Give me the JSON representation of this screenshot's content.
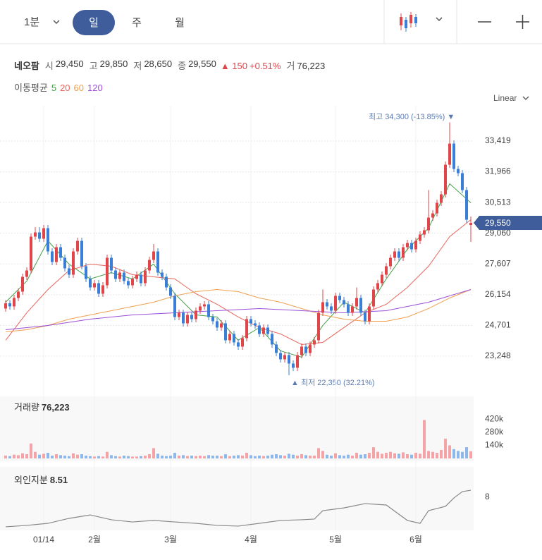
{
  "toolbar": {
    "interval": "1분",
    "periods": [
      "일",
      "주",
      "월"
    ],
    "scale": "Linear"
  },
  "quote": {
    "name": "네오팜",
    "fields": [
      {
        "label": "시",
        "value": "29,450"
      },
      {
        "label": "고",
        "value": "29,850"
      },
      {
        "label": "저",
        "value": "28,650"
      },
      {
        "label": "종",
        "value": "29,550"
      }
    ],
    "change": "▲ 150",
    "change_pct": "+0.51%",
    "volume_label": "거",
    "volume": "76,223"
  },
  "chart_data": [
    {
      "type": "candlestick",
      "legend_title": "이동평균",
      "up_color": "#e0454a",
      "down_color": "#3a7fd5",
      "price_tag": "29,550",
      "annotations": [
        "최고 34,300 (-13.85%) ▼",
        "▲ 최저 22,350 (32.21%)"
      ],
      "ylim": [
        21581,
        35086
      ],
      "yticks": [
        {
          "value": 23248,
          "label": "23,248"
        },
        {
          "value": 24701,
          "label": "24,701"
        },
        {
          "value": 26154,
          "label": "26,154"
        },
        {
          "value": 27607,
          "label": "27,607"
        },
        {
          "value": 29060,
          "label": "29,060"
        },
        {
          "value": 30513,
          "label": "30,513"
        },
        {
          "value": 31966,
          "label": "31,966"
        },
        {
          "value": 33419,
          "label": "33,419"
        }
      ],
      "x_labels": [
        {
          "index": 9,
          "label": "01/14"
        },
        {
          "index": 21,
          "label": "2월"
        },
        {
          "index": 39,
          "label": "3월"
        },
        {
          "index": 58,
          "label": "4월"
        },
        {
          "index": 78,
          "label": "5월"
        },
        {
          "index": 97,
          "label": "6월"
        }
      ],
      "open": [
        25500,
        25750,
        25600,
        26000,
        26300,
        27000,
        27300,
        28900,
        29100,
        28800,
        29300,
        28200,
        27700,
        28400,
        27900,
        27400,
        27100,
        28200,
        28700,
        27500,
        26900,
        26500,
        26700,
        26200,
        26600,
        27900,
        27300,
        26900,
        27200,
        26800,
        26600,
        26900,
        27100,
        26700,
        27300,
        27800,
        28200,
        27200,
        27000,
        26500,
        26100,
        25100,
        25300,
        24800,
        25200,
        25000,
        25400,
        25600,
        25700,
        25100,
        24900,
        24600,
        24800,
        24000,
        24300,
        23900,
        23700,
        24100,
        25000,
        24800,
        24700,
        24300,
        24600,
        24300,
        23800,
        23400,
        23100,
        23300,
        22900,
        22700,
        23300,
        23700,
        23400,
        23800,
        24000,
        25300,
        25800,
        25600,
        25400,
        26100,
        25900,
        25700,
        25300,
        25600,
        26000,
        25300,
        24900,
        25600,
        26400,
        26700,
        27100,
        27500,
        27900,
        28200,
        27900,
        28400,
        28600,
        28300,
        28700,
        29000,
        29200,
        29800,
        30000,
        30500,
        30900,
        32300,
        33300,
        32100,
        31900,
        31100,
        29450
      ],
      "high": [
        25900,
        25900,
        26150,
        26450,
        27150,
        27450,
        29050,
        29350,
        29350,
        29450,
        29450,
        28350,
        28550,
        28550,
        28050,
        27550,
        28350,
        28850,
        28850,
        27650,
        27050,
        26850,
        26850,
        26750,
        28050,
        28050,
        27450,
        27350,
        27350,
        26950,
        27050,
        27250,
        27250,
        27450,
        27950,
        28550,
        28350,
        27350,
        27150,
        26650,
        26250,
        25450,
        25450,
        25350,
        25350,
        25550,
        25750,
        25850,
        25850,
        25250,
        25050,
        24950,
        24950,
        24450,
        24450,
        24050,
        24250,
        25150,
        25150,
        24950,
        24850,
        24750,
        24750,
        24450,
        23950,
        23550,
        23450,
        23450,
        23050,
        23450,
        23850,
        23850,
        23950,
        24150,
        25450,
        26400,
        25950,
        25750,
        26250,
        26250,
        26050,
        25850,
        25750,
        26500,
        26150,
        25450,
        25750,
        26550,
        26850,
        27250,
        27650,
        28050,
        28350,
        28350,
        28550,
        28750,
        28750,
        28850,
        29150,
        29350,
        31100,
        30150,
        30650,
        31050,
        32450,
        34300,
        33450,
        32250,
        32050,
        31250,
        29850
      ],
      "low": [
        25350,
        25450,
        25450,
        25850,
        26150,
        26850,
        27150,
        28750,
        28650,
        28650,
        28050,
        27550,
        27550,
        27750,
        27250,
        26950,
        26950,
        28050,
        27350,
        26750,
        26350,
        26350,
        26050,
        26050,
        26450,
        27150,
        26750,
        26750,
        26650,
        26450,
        26450,
        26750,
        26550,
        26550,
        27150,
        27650,
        27050,
        26850,
        26350,
        25950,
        24950,
        24950,
        24650,
        24650,
        24850,
        24850,
        25250,
        25450,
        24950,
        24750,
        24450,
        24450,
        23850,
        23850,
        23750,
        23550,
        23550,
        23950,
        24650,
        24550,
        24150,
        24150,
        24150,
        23650,
        23250,
        22950,
        22950,
        22350,
        22550,
        22550,
        23150,
        23250,
        23250,
        23650,
        23850,
        25150,
        25450,
        25250,
        25250,
        25750,
        25550,
        25150,
        25150,
        25450,
        25150,
        24750,
        24750,
        25450,
        26250,
        26550,
        26950,
        27350,
        27750,
        27750,
        27750,
        28250,
        28150,
        28150,
        28550,
        28850,
        29050,
        29650,
        29850,
        30350,
        30750,
        32150,
        31950,
        31750,
        30950,
        29550,
        28650
      ],
      "close": [
        25750,
        25600,
        26000,
        26300,
        27000,
        27300,
        28900,
        29100,
        28800,
        29300,
        28200,
        27700,
        28400,
        27900,
        27400,
        27100,
        28200,
        28700,
        27500,
        26900,
        26500,
        26700,
        26200,
        26600,
        27900,
        27300,
        26900,
        27200,
        26800,
        26600,
        26900,
        27100,
        26700,
        27300,
        27800,
        28200,
        27200,
        27000,
        26500,
        26100,
        25100,
        25300,
        24800,
        25200,
        25000,
        25400,
        25600,
        25700,
        25100,
        24900,
        24600,
        24800,
        24000,
        24300,
        23900,
        23700,
        24100,
        25000,
        24800,
        24700,
        24300,
        24600,
        24300,
        23800,
        23400,
        23100,
        23300,
        22900,
        22700,
        23300,
        23700,
        23400,
        23800,
        24000,
        25300,
        25800,
        25600,
        25400,
        26100,
        25900,
        25700,
        25300,
        25600,
        26000,
        25300,
        24900,
        25600,
        26400,
        26700,
        27100,
        27500,
        27900,
        28200,
        27900,
        28400,
        28600,
        28300,
        28700,
        29000,
        29200,
        29800,
        30000,
        30500,
        30900,
        32300,
        33300,
        32100,
        31900,
        31100,
        29700,
        29550
      ],
      "series": [
        {
          "name": "5",
          "color": "#43a047",
          "x": [
            0,
            5,
            10,
            15,
            20,
            25,
            30,
            35,
            40,
            45,
            50,
            55,
            60,
            65,
            70,
            75,
            80,
            85,
            90,
            95,
            100,
            105,
            110
          ],
          "values": [
            25800,
            26800,
            28700,
            27600,
            26900,
            27200,
            26900,
            27600,
            26200,
            25200,
            25100,
            24000,
            24600,
            23500,
            23200,
            24700,
            25800,
            25300,
            26900,
            28300,
            29300,
            31400,
            30500
          ]
        },
        {
          "name": "20",
          "color": "#e8645a",
          "x": [
            0,
            5,
            10,
            15,
            20,
            25,
            30,
            35,
            40,
            45,
            50,
            55,
            60,
            65,
            70,
            75,
            80,
            85,
            90,
            95,
            100,
            105,
            110
          ],
          "values": [
            24000,
            25300,
            26400,
            27300,
            27600,
            27500,
            27100,
            27000,
            26900,
            26200,
            25700,
            25100,
            24600,
            24300,
            23800,
            23900,
            24600,
            25300,
            25700,
            26500,
            27500,
            28900,
            29700
          ]
        },
        {
          "name": "60",
          "color": "#f0a050",
          "x": [
            0,
            5,
            10,
            15,
            20,
            25,
            30,
            35,
            40,
            45,
            50,
            55,
            60,
            65,
            70,
            75,
            80,
            85,
            90,
            95,
            100,
            105,
            110
          ],
          "values": [
            24400,
            24500,
            24700,
            25000,
            25200,
            25400,
            25600,
            25800,
            26100,
            26300,
            26400,
            26300,
            26000,
            25800,
            25500,
            25200,
            25000,
            24900,
            24900,
            25100,
            25500,
            26000,
            26400
          ]
        },
        {
          "name": "120",
          "color": "#9c4fd8",
          "x": [
            0,
            10,
            20,
            30,
            40,
            50,
            60,
            70,
            80,
            90,
            100,
            110
          ],
          "values": [
            24500,
            24700,
            25000,
            25200,
            25300,
            25400,
            25500,
            25400,
            25300,
            25400,
            25800,
            26400
          ]
        }
      ]
    },
    {
      "type": "bar",
      "title": "거래량",
      "last_label": "76,223",
      "up_color": "#f4a3a6",
      "down_color": "#8fb8ea",
      "ylim": [
        0,
        663000
      ],
      "yticks": [
        {
          "value": 140000,
          "label": "140k"
        },
        {
          "value": 280000,
          "label": "280k"
        },
        {
          "value": 420000,
          "label": "420k"
        }
      ],
      "values": [
        30000,
        25000,
        40000,
        35000,
        55000,
        45000,
        160000,
        70000,
        40000,
        50000,
        60000,
        30000,
        45000,
        35000,
        30000,
        25000,
        55000,
        40000,
        45000,
        30000,
        25000,
        20000,
        25000,
        20000,
        70000,
        35000,
        25000,
        20000,
        30000,
        25000,
        20000,
        20000,
        25000,
        30000,
        45000,
        110000,
        50000,
        30000,
        25000,
        30000,
        60000,
        30000,
        35000,
        25000,
        30000,
        25000,
        30000,
        25000,
        35000,
        30000,
        30000,
        25000,
        45000,
        25000,
        30000,
        35000,
        30000,
        60000,
        35000,
        25000,
        30000,
        25000,
        30000,
        40000,
        45000,
        35000,
        30000,
        50000,
        40000,
        30000,
        45000,
        35000,
        30000,
        30000,
        110000,
        80000,
        40000,
        30000,
        55000,
        35000,
        30000,
        40000,
        30000,
        60000,
        40000,
        45000,
        60000,
        120000,
        70000,
        50000,
        60000,
        70000,
        55000,
        50000,
        65000,
        45000,
        40000,
        60000,
        50000,
        410000,
        80000,
        70000,
        60000,
        90000,
        210000,
        140000,
        100000,
        80000,
        70000,
        120000,
        76223
      ]
    },
    {
      "type": "line",
      "title": "외인지분",
      "last_label": "8.51",
      "color": "#888888",
      "ylim": [
        5.6,
        10.2
      ],
      "yticks": [
        8
      ],
      "x": [
        0,
        5,
        10,
        15,
        20,
        25,
        30,
        35,
        40,
        45,
        50,
        55,
        60,
        65,
        70,
        73,
        75,
        80,
        85,
        90,
        95,
        98,
        100,
        104,
        106,
        108,
        110
      ],
      "values": [
        5.86,
        5.96,
        6.11,
        6.47,
        6.72,
        6.37,
        6.21,
        6.32,
        6.21,
        6.11,
        5.96,
        5.91,
        6.11,
        6.32,
        6.37,
        6.42,
        7.03,
        7.23,
        7.54,
        7.44,
        6.32,
        6.11,
        7.03,
        7.34,
        7.95,
        8.41,
        8.51
      ]
    }
  ]
}
